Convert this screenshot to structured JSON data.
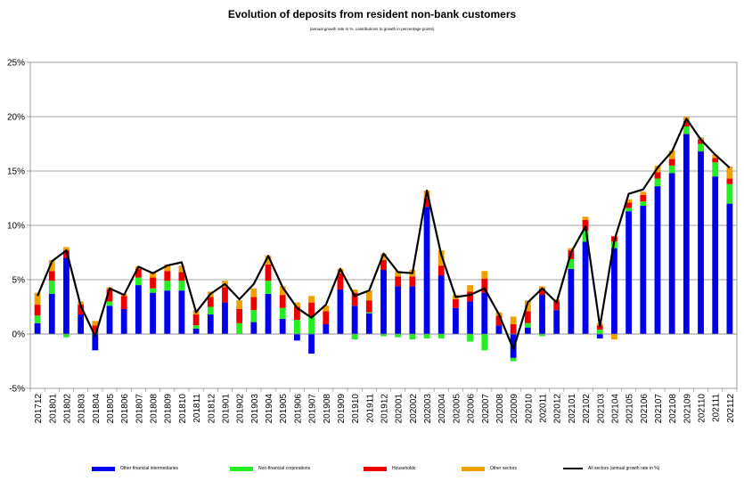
{
  "chart_data": {
    "type": "bar",
    "title": "Evolution of deposits from resident non-bank customers",
    "subtitle": "(annual growth rate in %, contributions to growth in percentage points)",
    "ylim": [
      -5,
      25
    ],
    "y_ticks": [
      "-5%",
      "0%",
      "5%",
      "10%",
      "15%",
      "20%",
      "25%"
    ],
    "y_tick_values": [
      -5,
      0,
      5,
      10,
      15,
      20,
      25
    ],
    "grid": true,
    "legend_position": "bottom",
    "categories": [
      "201712",
      "201801",
      "201802",
      "201803",
      "201804",
      "201805",
      "201806",
      "201807",
      "201808",
      "201809",
      "201810",
      "201811",
      "201812",
      "201901",
      "201902",
      "201903",
      "201904",
      "201905",
      "201906",
      "201907",
      "201908",
      "201909",
      "201910",
      "201911",
      "201912",
      "202001",
      "202002",
      "202003",
      "202004",
      "202005",
      "202006",
      "202007",
      "202008",
      "202009",
      "202010",
      "202011",
      "202012",
      "202101",
      "202102",
      "202103",
      "202104",
      "202105",
      "202106",
      "202107",
      "202108",
      "202109",
      "202110",
      "202111",
      "202112"
    ],
    "series": [
      {
        "name": "Other financial intermediaries",
        "color": "#0000ee",
        "kind": "bar",
        "values": [
          1.0,
          3.7,
          7.0,
          1.8,
          -1.5,
          2.6,
          2.3,
          4.5,
          3.8,
          4.0,
          4.0,
          0.5,
          1.8,
          2.9,
          0.0,
          1.1,
          3.7,
          1.4,
          -0.6,
          -1.8,
          0.9,
          4.1,
          2.6,
          1.9,
          5.9,
          4.4,
          4.4,
          11.7,
          5.4,
          2.4,
          3.0,
          3.8,
          0.8,
          -2.2,
          0.6,
          3.6,
          2.2,
          6.0,
          8.5,
          -0.4,
          7.9,
          11.3,
          11.8,
          13.6,
          14.8,
          18.4,
          16.8,
          14.5,
          12.0
        ]
      },
      {
        "name": "Non-financial corporations",
        "color": "#22ee22",
        "kind": "bar",
        "values": [
          0.7,
          1.2,
          -0.3,
          0.0,
          0.0,
          0.4,
          0.0,
          0.7,
          0.4,
          0.9,
          0.9,
          0.3,
          0.7,
          0.0,
          1.0,
          1.1,
          1.2,
          1.0,
          1.3,
          1.6,
          0.0,
          0.0,
          -0.5,
          0.1,
          -0.2,
          -0.3,
          -0.5,
          -0.4,
          -0.4,
          0.0,
          -0.7,
          -1.5,
          0.0,
          -0.3,
          0.4,
          -0.2,
          0.0,
          0.9,
          1.0,
          0.4,
          0.6,
          0.3,
          0.4,
          0.7,
          0.7,
          0.7,
          0.7,
          1.3,
          1.8
        ]
      },
      {
        "name": "Households",
        "color": "#ee0000",
        "kind": "bar",
        "values": [
          1.0,
          0.9,
          0.7,
          0.9,
          0.8,
          1.1,
          1.2,
          0.8,
          1.0,
          0.9,
          0.8,
          1.0,
          0.9,
          1.4,
          1.3,
          1.2,
          1.5,
          1.2,
          1.2,
          1.3,
          1.2,
          1.5,
          1.2,
          1.1,
          0.9,
          0.9,
          0.9,
          0.8,
          0.9,
          0.8,
          0.9,
          1.3,
          0.9,
          0.9,
          1.1,
          0.6,
          0.8,
          0.8,
          1.0,
          0.4,
          0.5,
          0.5,
          0.6,
          0.6,
          0.6,
          0.5,
          0.4,
          0.4,
          0.5
        ]
      },
      {
        "name": "Other sectors",
        "color": "#f0a000",
        "kind": "bar",
        "values": [
          1.1,
          1.0,
          0.3,
          0.3,
          0.4,
          0.2,
          0.2,
          0.2,
          0.5,
          0.6,
          0.6,
          0.4,
          0.5,
          0.6,
          0.8,
          0.8,
          0.8,
          0.8,
          0.4,
          0.6,
          0.5,
          0.4,
          0.3,
          0.9,
          0.6,
          0.5,
          0.6,
          0.7,
          1.4,
          0.4,
          0.6,
          0.7,
          0.3,
          0.7,
          1.0,
          0.2,
          0.2,
          0.2,
          0.3,
          0.2,
          -0.5,
          0.3,
          0.3,
          0.6,
          0.8,
          0.4,
          0.2,
          0.3,
          1.1
        ]
      },
      {
        "name": "All sectors (annual growth rate in %)",
        "color": "#000000",
        "kind": "line",
        "values": [
          3.5,
          6.7,
          7.7,
          2.6,
          -0.2,
          4.2,
          3.6,
          6.2,
          5.6,
          6.3,
          6.6,
          2.0,
          3.7,
          4.6,
          3.2,
          4.6,
          7.2,
          4.3,
          2.4,
          1.5,
          2.7,
          6.0,
          3.5,
          4.0,
          7.4,
          5.7,
          5.6,
          13.2,
          7.3,
          3.4,
          3.6,
          4.2,
          1.8,
          -1.4,
          2.9,
          4.2,
          2.9,
          7.5,
          9.9,
          0.7,
          8.6,
          12.9,
          13.3,
          15.3,
          16.8,
          19.8,
          17.9,
          16.5,
          15.3
        ]
      }
    ]
  }
}
